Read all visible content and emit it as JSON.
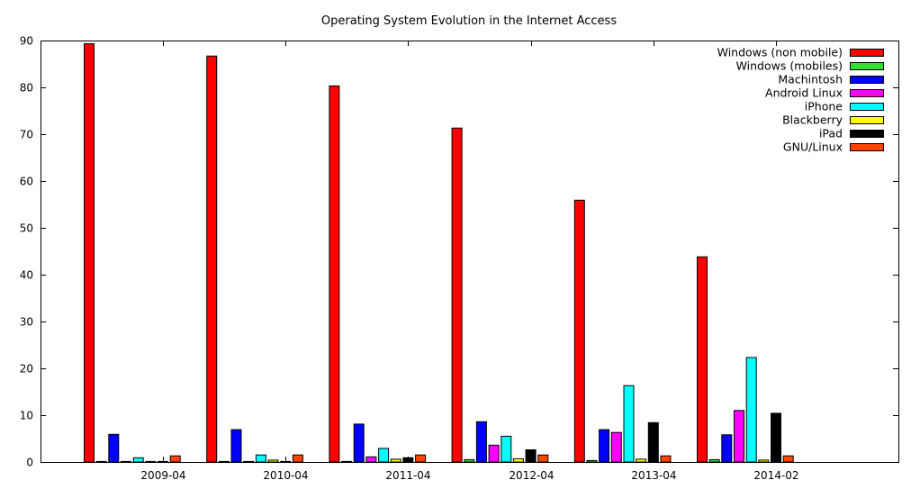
{
  "chart_data": {
    "type": "bar",
    "title": "Operating System Evolution in the Internet Access",
    "xlabel": "",
    "ylabel": "",
    "ylim": [
      0,
      90
    ],
    "yticks": [
      0,
      10,
      20,
      30,
      40,
      50,
      60,
      70,
      80,
      90
    ],
    "categories": [
      "2009-04",
      "2010-04",
      "2011-04",
      "2012-04",
      "2013-04",
      "2014-02"
    ],
    "legend_position": "top-right",
    "grid": false,
    "series": [
      {
        "name": "Windows (non mobile)",
        "color": "#ff0000",
        "values": [
          89.3,
          86.7,
          80.3,
          71.3,
          55.9,
          43.8
        ]
      },
      {
        "name": "Windows (mobiles)",
        "color": "#33dd33",
        "values": [
          0.0,
          0.0,
          0.0,
          0.5,
          0.3,
          0.5
        ]
      },
      {
        "name": "Machintosh",
        "color": "#0000ff",
        "values": [
          5.9,
          6.9,
          8.1,
          8.6,
          6.9,
          5.8
        ]
      },
      {
        "name": "Android Linux",
        "color": "#ff00ff",
        "values": [
          0.0,
          0.1,
          1.1,
          3.6,
          6.3,
          11.0
        ]
      },
      {
        "name": "iPhone",
        "color": "#00ffff",
        "values": [
          0.9,
          1.5,
          2.9,
          5.5,
          16.3,
          22.3
        ]
      },
      {
        "name": "Blackberry",
        "color": "#ffff00",
        "values": [
          0.0,
          0.4,
          0.6,
          0.7,
          0.6,
          0.4
        ]
      },
      {
        "name": "iPad",
        "color": "#000000",
        "values": [
          0.0,
          0.0,
          0.9,
          2.6,
          8.4,
          10.4
        ]
      },
      {
        "name": "GNU/Linux",
        "color": "#ff4500",
        "values": [
          1.3,
          1.5,
          1.5,
          1.5,
          1.3,
          1.3
        ]
      }
    ]
  }
}
